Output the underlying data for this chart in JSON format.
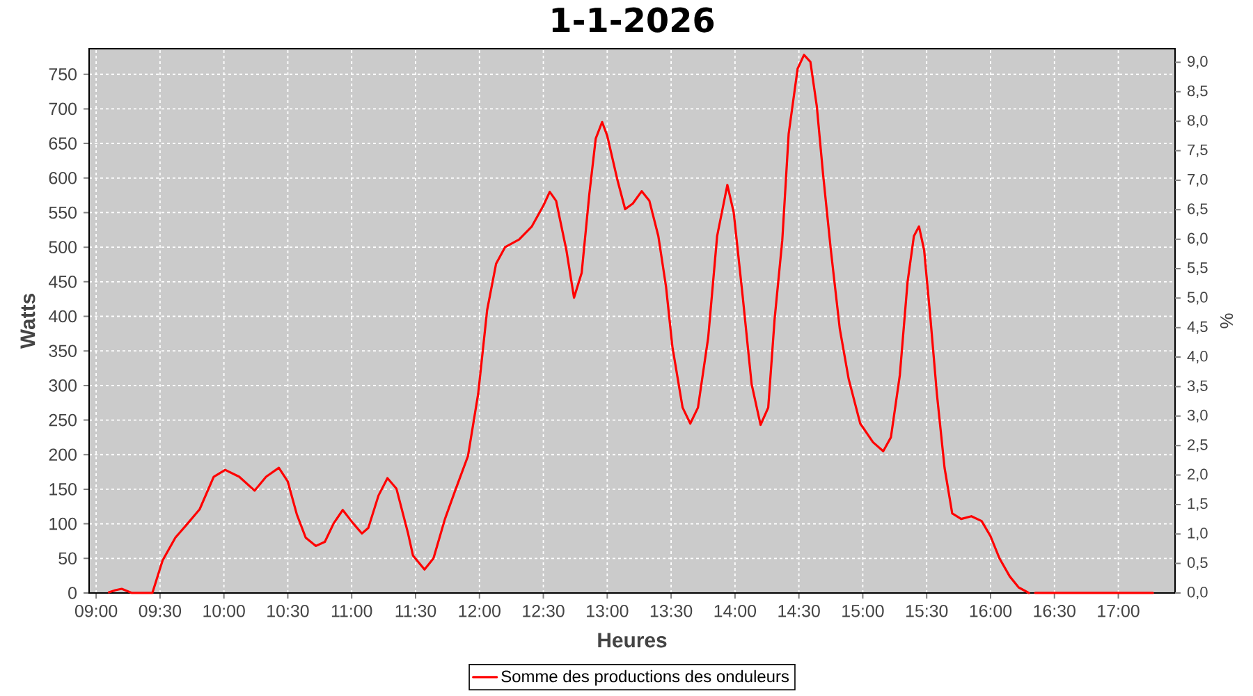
{
  "chart_data": {
    "type": "line",
    "title": "1-1-2026",
    "xlabel": "Heures",
    "ylabel": "Watts",
    "y2label": "%",
    "x": [
      9.1,
      9.15,
      9.2,
      9.24,
      9.28,
      9.44,
      9.52,
      9.62,
      9.7,
      9.81,
      9.92,
      10.01,
      10.12,
      10.24,
      10.33,
      10.43,
      10.5,
      10.57,
      10.64,
      10.72,
      10.79,
      10.86,
      10.93,
      11.01,
      11.08,
      11.13,
      11.21,
      11.28,
      11.35,
      11.44,
      11.48,
      11.57,
      11.64,
      11.73,
      11.81,
      11.91,
      11.99,
      12.06,
      12.13,
      12.2,
      12.31,
      12.41,
      12.5,
      12.55,
      12.6,
      12.68,
      12.74,
      12.8,
      12.86,
      12.91,
      12.96,
      13.0,
      13.08,
      13.14,
      13.2,
      13.27,
      13.33,
      13.4,
      13.46,
      13.51,
      13.59,
      13.65,
      13.71,
      13.79,
      13.86,
      13.94,
      13.99,
      14.06,
      14.13,
      14.2,
      14.26,
      14.31,
      14.37,
      14.42,
      14.49,
      14.54,
      14.59,
      14.64,
      14.69,
      14.75,
      14.82,
      14.89,
      14.98,
      15.08,
      15.16,
      15.22,
      15.29,
      15.35,
      15.4,
      15.44,
      15.48,
      15.53,
      15.58,
      15.64,
      15.7,
      15.77,
      15.85,
      15.93,
      16.0,
      16.07,
      16.15,
      16.22,
      16.3,
      16.33,
      16.35,
      17.27
    ],
    "series": [
      {
        "name": "Somme des productions des onduleurs",
        "color": "#ff0000",
        "values": [
          1,
          4,
          6,
          3,
          0,
          0,
          47,
          80,
          97,
          121,
          168,
          178,
          168,
          148,
          168,
          181,
          161,
          114,
          80,
          68,
          74,
          101,
          120,
          101,
          86,
          94,
          141,
          166,
          151,
          87,
          54,
          34,
          50,
          107,
          148,
          198,
          288,
          409,
          476,
          500,
          511,
          530,
          560,
          580,
          567,
          496,
          427,
          463,
          577,
          657,
          681,
          661,
          597,
          555,
          563,
          581,
          567,
          516,
          443,
          356,
          268,
          245,
          268,
          369,
          516,
          590,
          550,
          429,
          302,
          243,
          268,
          396,
          510,
          664,
          758,
          778,
          768,
          704,
          604,
          496,
          382,
          309,
          245,
          218,
          205,
          225,
          315,
          449,
          516,
          530,
          496,
          396,
          288,
          181,
          115,
          107,
          111,
          104,
          82,
          50,
          24,
          8,
          0,
          null,
          0,
          0
        ]
      }
    ],
    "xlim": [
      8.945,
      17.444
    ],
    "xticks": [
      {
        "value": 9,
        "label": "09:00"
      },
      {
        "value": 9.5,
        "label": "09:30"
      },
      {
        "value": 10,
        "label": "10:00"
      },
      {
        "value": 10.5,
        "label": "10:30"
      },
      {
        "value": 11,
        "label": "11:00"
      },
      {
        "value": 11.5,
        "label": "11:30"
      },
      {
        "value": 12,
        "label": "12:00"
      },
      {
        "value": 12.5,
        "label": "12:30"
      },
      {
        "value": 13,
        "label": "13:00"
      },
      {
        "value": 13.5,
        "label": "13:30"
      },
      {
        "value": 14,
        "label": "14:00"
      },
      {
        "value": 14.5,
        "label": "14:30"
      },
      {
        "value": 15,
        "label": "15:00"
      },
      {
        "value": 15.5,
        "label": "15:30"
      },
      {
        "value": 16,
        "label": "16:00"
      },
      {
        "value": 16.5,
        "label": "16:30"
      },
      {
        "value": 17,
        "label": "17:00"
      }
    ],
    "ylim": [
      0,
      787
    ],
    "yticks": [
      0,
      50,
      100,
      150,
      200,
      250,
      300,
      350,
      400,
      450,
      500,
      550,
      600,
      650,
      700,
      750
    ],
    "y2lim": [
      0,
      9.23
    ],
    "y2ticks": [
      {
        "value": 0,
        "label": "0,0"
      },
      {
        "value": 0.5,
        "label": "0,5"
      },
      {
        "value": 1,
        "label": "1,0"
      },
      {
        "value": 1.5,
        "label": "1,5"
      },
      {
        "value": 2,
        "label": "2,0"
      },
      {
        "value": 2.5,
        "label": "2,5"
      },
      {
        "value": 3,
        "label": "3,0"
      },
      {
        "value": 3.5,
        "label": "3,5"
      },
      {
        "value": 4,
        "label": "4,0"
      },
      {
        "value": 4.5,
        "label": "4,5"
      },
      {
        "value": 5,
        "label": "5,0"
      },
      {
        "value": 5.5,
        "label": "5,5"
      },
      {
        "value": 6,
        "label": "6,0"
      },
      {
        "value": 6.5,
        "label": "6,5"
      },
      {
        "value": 7,
        "label": "7,0"
      },
      {
        "value": 7.5,
        "label": "7,5"
      },
      {
        "value": 8,
        "label": "8,0"
      },
      {
        "value": 8.5,
        "label": "8,5"
      },
      {
        "value": 9,
        "label": "9,0"
      }
    ],
    "grid": true,
    "legend": "bottom"
  }
}
